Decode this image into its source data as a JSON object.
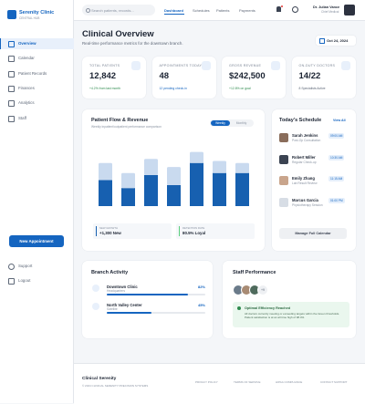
{
  "sidebar": {
    "brand": "Serenity Clinic",
    "subtitle": "CENTRAL HUB",
    "nav": [
      "Overview",
      "Calendar",
      "Patient Records",
      "Finances",
      "Analytics",
      "Staff"
    ],
    "cta": "New Appointment",
    "bottom_links": [
      "Support",
      "Logout"
    ]
  },
  "topbar": {
    "search_placeholder": "Search patients, records...",
    "nav": [
      "Dashboard",
      "Schedules",
      "Patients",
      "Payments"
    ],
    "user": {
      "name": "Dr. Julian Vance",
      "role": "Chief Medical"
    }
  },
  "header": {
    "title": "Clinical Overview",
    "subtitle": "Real-time performance metrics for the downtown branch.",
    "date": "Oct 24, 2024"
  },
  "kpis": [
    {
      "label": "TOTAL PATIENTS",
      "value": "12,842",
      "note": "+4.2% from last month"
    },
    {
      "label": "APPOINTMENTS TODAY",
      "value": "48",
      "note": "12 pending check-in"
    },
    {
      "label": "GROSS REVENUE",
      "value": "$242,500",
      "note": "+12.8% on goal"
    },
    {
      "label": "ON-DUTY DOCTORS",
      "value": "14/22",
      "note": "8 Specialists Active"
    }
  ],
  "patient_flow": {
    "title": "Patient Flow & Revenue",
    "subtitle": "Weekly inpatient/outpatient performance comparison",
    "toggles": [
      "Weekly",
      "Monthly"
    ],
    "chart": {
      "type": "bar",
      "stacked": true,
      "ylim": [
        0,
        60
      ],
      "series": [
        {
          "color": "#1760b0",
          "values": [
            26,
            18,
            31,
            21,
            43,
            33,
            33
          ]
        },
        {
          "color": "#c9daef",
          "values": [
            17,
            15,
            16,
            18,
            11,
            12,
            10
          ]
        }
      ]
    },
    "stats": [
      {
        "label": "NEW GROWTH",
        "value": "+1,300 New",
        "color": "#1760b0"
      },
      {
        "label": "RETENTION RATE",
        "value": "80.5% Loyal",
        "color": "#5ccf7d"
      }
    ]
  },
  "schedule": {
    "title": "Today's Schedule",
    "link": "View All",
    "items": [
      {
        "name": "Sarah Jenkins",
        "detail": "Post-Op Consultation",
        "time": "09:00 AM"
      },
      {
        "name": "Robert Miller",
        "detail": "Regular Check-up",
        "time": "10:30 AM"
      },
      {
        "name": "Emily Zhang",
        "detail": "Lab Result Review",
        "time": "11:15 AM"
      },
      {
        "name": "Marcus Garcia",
        "detail": "Physiotherapy Session",
        "time": "01:00 PM"
      }
    ],
    "button": "Manage Full Calendar"
  },
  "branch_activity": {
    "title": "Branch Activity",
    "branches": [
      {
        "name": "Downtown Clinic",
        "type": "Headquarters",
        "progress": {
          "value": 82,
          "label": "82%"
        }
      },
      {
        "name": "North Valley Center",
        "type": "Satellite",
        "progress": {
          "value": 45,
          "label": "45%"
        }
      }
    ]
  },
  "staff": {
    "title": "Staff Performance",
    "extra": "+9",
    "alert": {
      "title": "Optimal Efficiency Reached",
      "text": "All doctors currently meeting or exceeding targets within the Green thresholds. Patient satisfaction is at an all time high of 98.4%."
    }
  },
  "footer": {
    "brand": "Clinical Serenity",
    "copyright": "© 2024 CLINICAL SERENITY PRECISION SYSTEMS",
    "links": [
      "PRIVACY POLICY",
      "TERMS OF SERVICE",
      "HIPAA COMPLIANCE",
      "CONTACT SUPPORT"
    ]
  }
}
